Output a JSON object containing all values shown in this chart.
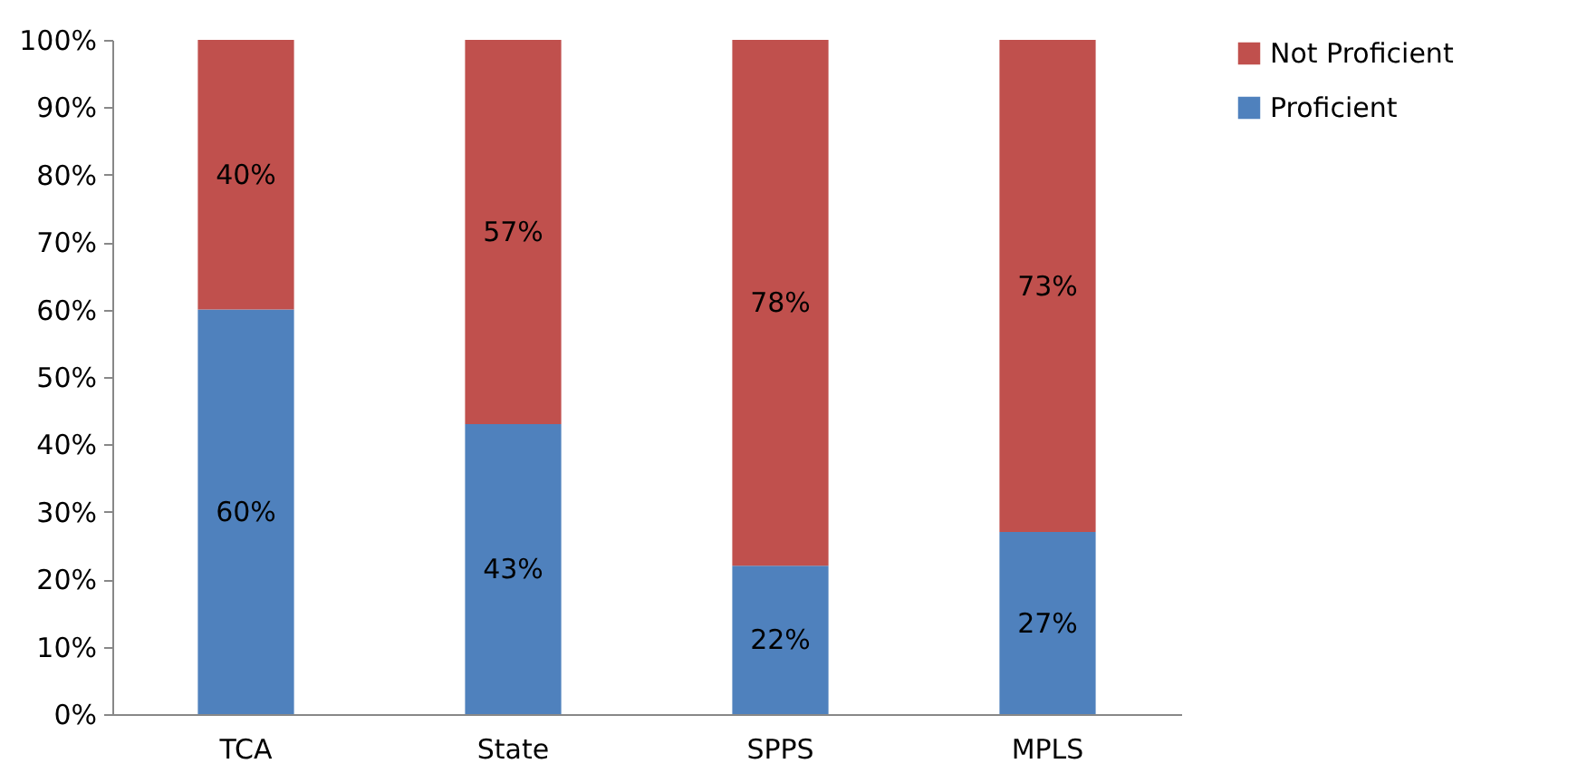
{
  "chart_data": {
    "type": "bar",
    "stacked": true,
    "categories": [
      "TCA",
      "State",
      "SPPS",
      "MPLS"
    ],
    "series": [
      {
        "name": "Proficient",
        "color": "#4f81bd",
        "values": [
          60,
          43,
          22,
          27
        ],
        "value_labels": [
          "60%",
          "43%",
          "22%",
          "27%"
        ]
      },
      {
        "name": "Not Proficient",
        "color": "#c0504d",
        "values": [
          40,
          57,
          78,
          73
        ],
        "value_labels": [
          "40%",
          "57%",
          "78%",
          "73%"
        ]
      }
    ],
    "ylim": [
      0,
      100
    ],
    "yticks": [
      {
        "value": 0,
        "label": "0%"
      },
      {
        "value": 10,
        "label": "10%"
      },
      {
        "value": 20,
        "label": "20%"
      },
      {
        "value": 30,
        "label": "30%"
      },
      {
        "value": 40,
        "label": "40%"
      },
      {
        "value": 50,
        "label": "50%"
      },
      {
        "value": 60,
        "label": "60%"
      },
      {
        "value": 70,
        "label": "70%"
      },
      {
        "value": 80,
        "label": "80%"
      },
      {
        "value": 90,
        "label": "90%"
      },
      {
        "value": 100,
        "label": "100%"
      }
    ],
    "grid": false,
    "legend": "right"
  }
}
